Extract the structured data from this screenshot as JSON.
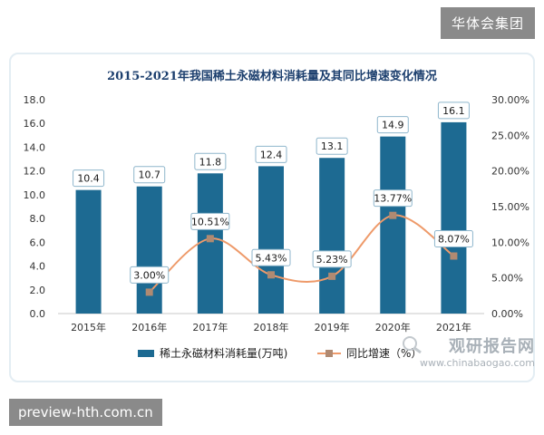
{
  "header_badge": "华体会集团",
  "footer_badge": "preview-hth.com.cn",
  "watermark": {
    "title": "观研报告网",
    "url": "www.chinabaogao.com"
  },
  "colors": {
    "bar": "#1d6a92",
    "line": "#ee9a6a",
    "marker": "#b08a72",
    "title": "#1c3f6e"
  },
  "chart_data": {
    "type": "bar",
    "title": "2015-2021年我国稀土永磁材料消耗量及其同比增速变化情况",
    "categories": [
      "2015年",
      "2016年",
      "2017年",
      "2018年",
      "2019年",
      "2020年",
      "2021年"
    ],
    "series": [
      {
        "name": "稀土永磁材料消耗量(万吨)",
        "type": "bar",
        "axis": "left",
        "values": [
          10.4,
          10.7,
          11.8,
          12.4,
          13.1,
          14.9,
          16.1
        ],
        "labels": [
          "10.4",
          "10.7",
          "11.8",
          "12.4",
          "13.1",
          "14.9",
          "16.1"
        ]
      },
      {
        "name": "同比增速（%）",
        "type": "line",
        "axis": "right",
        "values": [
          null,
          3.0,
          10.51,
          5.43,
          5.23,
          13.77,
          8.07
        ],
        "labels": [
          "",
          "3.00%",
          "10.51%",
          "5.43%",
          "5.23%",
          "13.77%",
          "8.07%"
        ]
      }
    ],
    "y_left": {
      "min": 0,
      "max": 18,
      "ticks": [
        "0.0",
        "2.0",
        "4.0",
        "6.0",
        "8.0",
        "10.0",
        "12.0",
        "14.0",
        "16.0",
        "18.0"
      ]
    },
    "y_right": {
      "min": 0,
      "max": 30,
      "ticks": [
        "0.00%",
        "5.00%",
        "10.00%",
        "15.00%",
        "20.00%",
        "25.00%",
        "30.00%"
      ]
    },
    "grid": false,
    "legend": "bottom"
  }
}
